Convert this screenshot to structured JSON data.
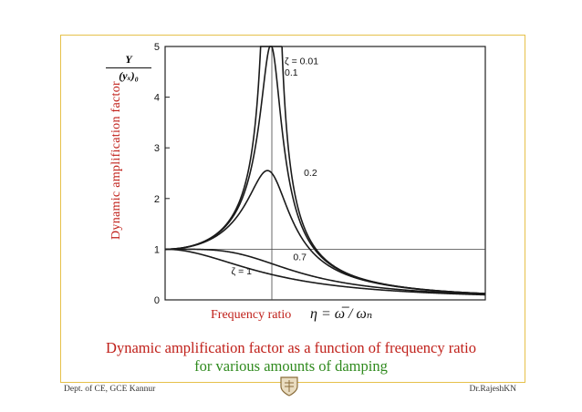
{
  "chart_data": {
    "type": "line",
    "ylabel": "Dynamic amplification factor",
    "ylabel_expr_num": "Y",
    "ylabel_expr_den": "(yₓ)₀",
    "xlabel": "Frequency ratio",
    "xlabel_formula": "η = ω̅ / ωₙ",
    "ylim": [
      0,
      5
    ],
    "yticks": [
      "0",
      "1",
      "2",
      "3",
      "4",
      "5"
    ],
    "xlim": [
      0,
      3
    ],
    "grid": false,
    "reference_lines": {
      "y": 1,
      "x": 1
    },
    "series": [
      {
        "name": "ζ = 0.01",
        "damping": 0.01
      },
      {
        "name": "0.1",
        "damping": 0.1
      },
      {
        "name": "0.2",
        "damping": 0.2
      },
      {
        "name": "0.7",
        "damping": 0.7
      },
      {
        "name": "ζ = 1",
        "damping": 1.0
      }
    ]
  },
  "caption": {
    "line1": "Dynamic amplification factor as a function of frequency ratio",
    "line2": "for various amounts of damping"
  },
  "footer": {
    "left": "Dept. of CE, GCE Kannur",
    "right": "Dr.RajeshKN"
  },
  "colors": {
    "label_red": "#c0201a",
    "caption_green": "#2f8a1e",
    "frame_gold": "#e6c14a"
  },
  "icons": {
    "logo": "college-emblem-icon"
  }
}
